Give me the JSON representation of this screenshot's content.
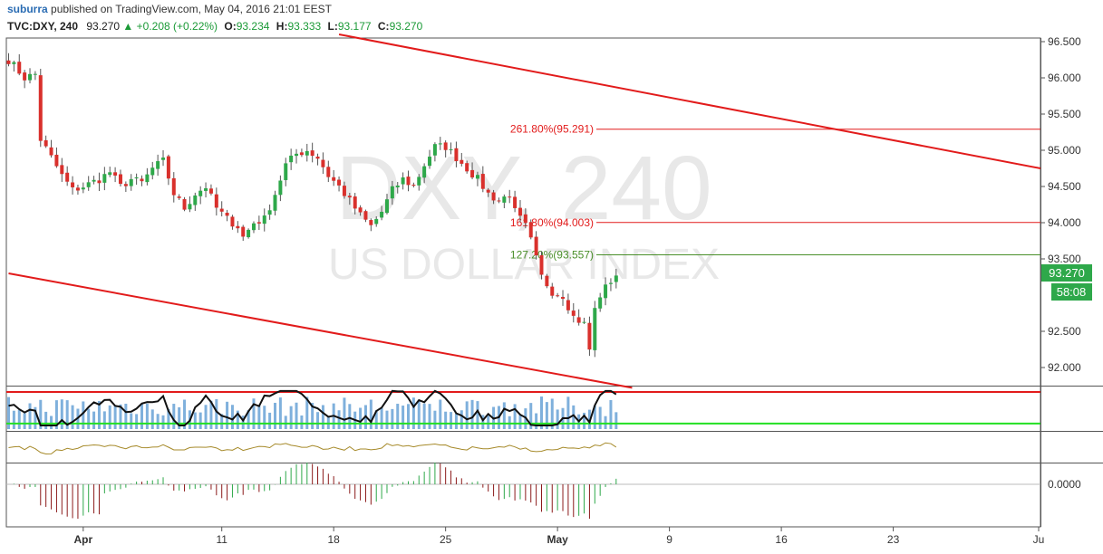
{
  "header": {
    "user": "suburra",
    "published_text": "published on TradingView.com, May 04, 2016 21:01 EEST",
    "symbol": "TVC:DXY, 240",
    "last": "93.270",
    "change_arrow": "▲",
    "change": "+0.208 (+0.22%)",
    "o_label": "O:",
    "o_value": "93.234",
    "h_label": "H:",
    "h_value": "93.333",
    "l_label": "L:",
    "l_value": "93.177",
    "c_label": "C:",
    "c_value": "93.270"
  },
  "watermark": {
    "line1": "DXY, 240",
    "line2": "US DOLLAR INDEX"
  },
  "price_badge": {
    "value": "93.270",
    "countdown": "58:08",
    "color": "#2ea84a"
  },
  "colors": {
    "up": "#2ea84a",
    "down": "#d9302c",
    "channel": "#e21b1b",
    "fib_red": "#e21b1b",
    "fib_green": "#4a8f2a",
    "volume": "#7fb0dc",
    "osc_line": "#111111",
    "osc_upper": "#e21b1b",
    "osc_lower": "#23e023",
    "osc2": "#a68a2a",
    "hist_up": "#2ea84a",
    "hist_down": "#8b1a1a"
  },
  "chart_data": {
    "type": "candlestick",
    "ylim": [
      91.75,
      96.55
    ],
    "y_ticks": [
      "96.500",
      "96.000",
      "95.500",
      "95.000",
      "94.500",
      "94.000",
      "93.500",
      "92.500",
      "92.000"
    ],
    "x_ticks": [
      {
        "label": "Apr",
        "bold": true,
        "bar": 14
      },
      {
        "label": "11",
        "bold": false,
        "bar": 40
      },
      {
        "label": "18",
        "bold": false,
        "bar": 61
      },
      {
        "label": "25",
        "bold": false,
        "bar": 82
      },
      {
        "label": "May",
        "bold": true,
        "bar": 103
      },
      {
        "label": "9",
        "bold": false,
        "bar": 124
      },
      {
        "label": "16",
        "bold": false,
        "bar": 145
      },
      {
        "label": "23",
        "bold": false,
        "bar": 166
      },
      {
        "label": "Ju",
        "bold": false,
        "bar": 194
      }
    ],
    "anchors": [
      [
        0,
        96.25
      ],
      [
        3,
        96.0
      ],
      [
        5,
        96.05
      ],
      [
        6,
        95.15
      ],
      [
        8,
        94.9
      ],
      [
        10,
        94.65
      ],
      [
        12,
        94.45
      ],
      [
        14,
        94.5
      ],
      [
        17,
        94.6
      ],
      [
        19,
        94.7
      ],
      [
        21,
        94.5
      ],
      [
        23,
        94.6
      ],
      [
        25,
        94.55
      ],
      [
        27,
        94.75
      ],
      [
        29,
        94.85
      ],
      [
        31,
        94.4
      ],
      [
        33,
        94.2
      ],
      [
        35,
        94.4
      ],
      [
        37,
        94.5
      ],
      [
        39,
        94.2
      ],
      [
        41,
        94.05
      ],
      [
        43,
        93.95
      ],
      [
        44,
        93.8
      ],
      [
        46,
        94.0
      ],
      [
        48,
        94.05
      ],
      [
        50,
        94.4
      ],
      [
        52,
        94.8
      ],
      [
        54,
        94.95
      ],
      [
        56,
        95.0
      ],
      [
        58,
        94.9
      ],
      [
        60,
        94.65
      ],
      [
        62,
        94.5
      ],
      [
        64,
        94.3
      ],
      [
        66,
        94.1
      ],
      [
        68,
        93.95
      ],
      [
        70,
        94.15
      ],
      [
        72,
        94.45
      ],
      [
        74,
        94.6
      ],
      [
        76,
        94.5
      ],
      [
        78,
        94.8
      ],
      [
        80,
        95.05
      ],
      [
        82,
        95.05
      ],
      [
        84,
        94.9
      ],
      [
        86,
        94.75
      ],
      [
        88,
        94.6
      ],
      [
        90,
        94.4
      ],
      [
        92,
        94.3
      ],
      [
        94,
        94.4
      ],
      [
        95,
        94.15
      ],
      [
        97,
        93.95
      ],
      [
        98,
        93.75
      ],
      [
        100,
        93.25
      ],
      [
        102,
        93.05
      ],
      [
        104,
        93.0
      ],
      [
        106,
        92.7
      ],
      [
        108,
        92.6
      ],
      [
        109,
        92.25
      ],
      [
        110,
        92.8
      ],
      [
        111,
        93.0
      ],
      [
        113,
        93.2
      ],
      [
        114,
        93.27
      ]
    ],
    "channel_upper": [
      {
        "x_bar": 62,
        "y": 96.6
      },
      {
        "x_bar": 194,
        "y": 94.75
      }
    ],
    "channel_lower": [
      {
        "x_bar": 0,
        "y": 93.3
      },
      {
        "x_bar": 117,
        "y": 91.72
      }
    ],
    "fib_levels": [
      {
        "label": "261.80%(95.291)",
        "value": 95.291,
        "color": "red"
      },
      {
        "label": "161.80%(94.003)",
        "value": 94.003,
        "color": "red"
      },
      {
        "label": "127.20%(93.557)",
        "value": 93.557,
        "color": "green"
      }
    ],
    "osc_panel": {
      "upper_level": 0.95,
      "lower_level": 0.1
    },
    "macd_panel": {
      "y_ticks": [
        "0.0000"
      ]
    }
  }
}
